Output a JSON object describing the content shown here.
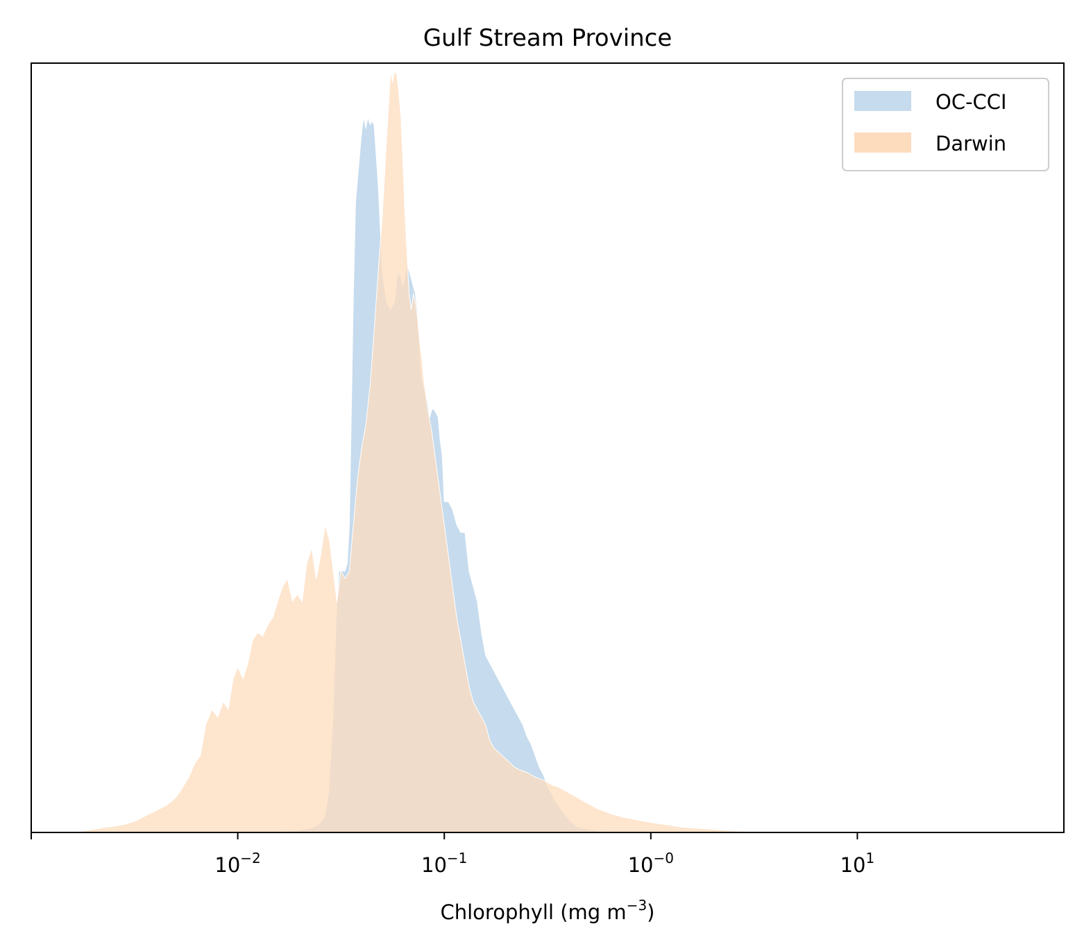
{
  "chart_data": {
    "type": "area",
    "title": "Gulf Stream Province",
    "xlabel": "Chlorophyll  (mg m",
    "xlabel_exponent": "−3",
    "xlabel_suffix": ")",
    "ylabel": "",
    "xscale": "log",
    "xlim": [
      0.001,
      100
    ],
    "ylim": [
      0,
      1
    ],
    "grid": false,
    "legend_position": "top-right",
    "xticks": [
      {
        "value": 0.01,
        "base": "10",
        "exp": "−2"
      },
      {
        "value": 0.1,
        "base": "10",
        "exp": "−1"
      },
      {
        "value": 1,
        "base": "10",
        "exp": "−0"
      },
      {
        "value": 10,
        "base": "10",
        "exp": "1"
      }
    ],
    "series": [
      {
        "name": "OC-CCI",
        "color": "#c6dbed",
        "x": [
          0.0129,
          0.0165,
          0.02,
          0.0229,
          0.0246,
          0.0263,
          0.0275,
          0.0288,
          0.03,
          0.0309,
          0.0316,
          0.0324,
          0.0331,
          0.0339,
          0.0347,
          0.0355,
          0.0363,
          0.0372,
          0.0389,
          0.0398,
          0.0407,
          0.0417,
          0.0427,
          0.0437,
          0.0447,
          0.0457,
          0.0468,
          0.0479,
          0.0501,
          0.0525,
          0.055,
          0.0575,
          0.0589,
          0.0603,
          0.0631,
          0.0661,
          0.0692,
          0.0724,
          0.0741,
          0.0759,
          0.0776,
          0.0794,
          0.0813,
          0.0832,
          0.0851,
          0.0871,
          0.0891,
          0.0933,
          0.0955,
          0.0977,
          0.1,
          0.1047,
          0.1096,
          0.1148,
          0.1202,
          0.1259,
          0.1318,
          0.138,
          0.1445,
          0.1514,
          0.1585,
          0.166,
          0.1738,
          0.182,
          0.1905,
          0.1995,
          0.2089,
          0.2188,
          0.2291,
          0.2399,
          0.2512,
          0.263,
          0.2754,
          0.2884,
          0.302,
          0.3162,
          0.3311,
          0.3467,
          0.3631,
          0.3802,
          0.3981,
          0.4169,
          0.4365,
          0.4571,
          0.4786,
          0.5012,
          0.5248,
          0.5495,
          0.5754,
          0.6026,
          0.631,
          0.6607,
          0.6918,
          0.7244,
          0.7586,
          0.7943,
          0.8318,
          0.871,
          0.912,
          0.955,
          1.0,
          1.2,
          1.5,
          2.0,
          2.5,
          3.0
        ],
        "y": [
          0.0,
          0.001,
          0.003,
          0.006,
          0.01,
          0.02,
          0.05,
          0.14,
          0.28,
          0.34,
          0.34,
          0.34,
          0.34,
          0.35,
          0.4,
          0.55,
          0.7,
          0.82,
          0.88,
          0.91,
          0.93,
          0.915,
          0.93,
          0.92,
          0.925,
          0.92,
          0.88,
          0.84,
          0.73,
          0.69,
          0.68,
          0.69,
          0.72,
          0.73,
          0.71,
          0.74,
          0.72,
          0.7,
          0.68,
          0.63,
          0.59,
          0.58,
          0.57,
          0.56,
          0.54,
          0.55,
          0.55,
          0.54,
          0.51,
          0.49,
          0.43,
          0.43,
          0.42,
          0.4,
          0.39,
          0.39,
          0.34,
          0.32,
          0.3,
          0.26,
          0.23,
          0.22,
          0.21,
          0.2,
          0.19,
          0.18,
          0.17,
          0.16,
          0.15,
          0.14,
          0.125,
          0.115,
          0.1,
          0.085,
          0.075,
          0.06,
          0.05,
          0.04,
          0.032,
          0.025,
          0.018,
          0.012,
          0.008,
          0.006,
          0.005,
          0.004,
          0.003,
          0.002,
          0.0015,
          0.0012,
          0.001,
          0.0008,
          0.0006,
          0.0005,
          0.0004,
          0.0003,
          0.0002,
          0.0002,
          0.0001,
          0.0001,
          0.0,
          0.0,
          0.0,
          0.0,
          0.0,
          0.0
        ]
      },
      {
        "name": "Darwin",
        "color": "#fddcbe",
        "x": [
          0.0016,
          0.0018,
          0.002,
          0.0022,
          0.0025,
          0.0028,
          0.0032,
          0.0036,
          0.004,
          0.0045,
          0.005,
          0.0054,
          0.0058,
          0.0062,
          0.0066,
          0.007,
          0.0075,
          0.008,
          0.0085,
          0.009,
          0.0095,
          0.01,
          0.0106,
          0.0112,
          0.0118,
          0.0125,
          0.0132,
          0.014,
          0.0148,
          0.0156,
          0.0165,
          0.0174,
          0.0184,
          0.0194,
          0.0205,
          0.0216,
          0.0228,
          0.024,
          0.0252,
          0.0265,
          0.0278,
          0.029,
          0.0302,
          0.0316,
          0.0331,
          0.0347,
          0.0363,
          0.038,
          0.0398,
          0.0417,
          0.0437,
          0.0457,
          0.0479,
          0.0501,
          0.0525,
          0.055,
          0.0562,
          0.0575,
          0.0589,
          0.0603,
          0.0617,
          0.0631,
          0.0646,
          0.0661,
          0.0676,
          0.0692,
          0.0708,
          0.0724,
          0.0741,
          0.0759,
          0.0776,
          0.0794,
          0.0832,
          0.0871,
          0.0912,
          0.0955,
          0.1,
          0.1047,
          0.1096,
          0.1148,
          0.1202,
          0.1259,
          0.1318,
          0.138,
          0.1445,
          0.1514,
          0.1585,
          0.166,
          0.1738,
          0.182,
          0.1905,
          0.1995,
          0.2089,
          0.2188,
          0.2291,
          0.2399,
          0.2512,
          0.263,
          0.2754,
          0.2884,
          0.302,
          0.3162,
          0.3311,
          0.3467,
          0.3631,
          0.3802,
          0.3981,
          0.4169,
          0.4365,
          0.4571,
          0.4786,
          0.5012,
          0.5248,
          0.5495,
          0.5754,
          0.6026,
          0.631,
          0.6607,
          0.6918,
          0.7244,
          0.7586,
          0.7943,
          0.8318,
          0.871,
          0.912,
          0.955,
          1.0,
          1.122,
          1.259,
          1.413,
          1.585,
          1.778,
          1.995,
          2.239,
          2.512,
          2.818,
          3.162,
          3.548,
          3.981,
          4.467
        ],
        "y": [
          0.0,
          0.002,
          0.004,
          0.006,
          0.008,
          0.01,
          0.015,
          0.022,
          0.028,
          0.035,
          0.045,
          0.058,
          0.072,
          0.09,
          0.1,
          0.14,
          0.16,
          0.15,
          0.17,
          0.16,
          0.2,
          0.215,
          0.2,
          0.22,
          0.25,
          0.26,
          0.255,
          0.27,
          0.28,
          0.3,
          0.32,
          0.33,
          0.3,
          0.31,
          0.3,
          0.35,
          0.37,
          0.33,
          0.36,
          0.4,
          0.38,
          0.34,
          0.3,
          0.34,
          0.33,
          0.34,
          0.4,
          0.46,
          0.5,
          0.53,
          0.58,
          0.65,
          0.73,
          0.8,
          0.9,
          0.99,
          0.975,
          0.99,
          0.985,
          0.96,
          0.93,
          0.87,
          0.8,
          0.75,
          0.7,
          0.68,
          0.7,
          0.69,
          0.67,
          0.64,
          0.62,
          0.59,
          0.55,
          0.52,
          0.48,
          0.44,
          0.4,
          0.36,
          0.32,
          0.28,
          0.25,
          0.22,
          0.19,
          0.17,
          0.16,
          0.15,
          0.14,
          0.12,
          0.11,
          0.105,
          0.1,
          0.095,
          0.09,
          0.085,
          0.082,
          0.08,
          0.078,
          0.075,
          0.072,
          0.07,
          0.068,
          0.065,
          0.062,
          0.06,
          0.058,
          0.055,
          0.052,
          0.049,
          0.046,
          0.043,
          0.04,
          0.037,
          0.034,
          0.031,
          0.029,
          0.027,
          0.025,
          0.023,
          0.022,
          0.02,
          0.019,
          0.018,
          0.017,
          0.016,
          0.015,
          0.014,
          0.013,
          0.011,
          0.009,
          0.007,
          0.006,
          0.005,
          0.004,
          0.003,
          0.002,
          0.0015,
          0.001,
          0.0006,
          0.0003,
          0.0
        ]
      }
    ]
  }
}
